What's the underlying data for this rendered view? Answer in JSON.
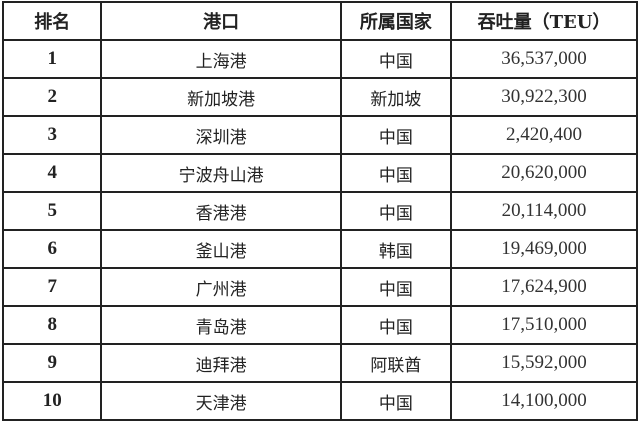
{
  "table": {
    "headers": [
      "排名",
      "港口",
      "所属国家",
      "吞吐量（TEU）"
    ],
    "rows": [
      [
        "1",
        "上海港",
        "中国",
        "36,537,000"
      ],
      [
        "2",
        "新加坡港",
        "新加坡",
        "30,922,300"
      ],
      [
        "3",
        "深圳港",
        "中国",
        "2,420,400"
      ],
      [
        "4",
        "宁波舟山港",
        "中国",
        "20,620,000"
      ],
      [
        "5",
        "香港港",
        "中国",
        "20,114,000"
      ],
      [
        "6",
        "釜山港",
        "韩国",
        "19,469,000"
      ],
      [
        "7",
        "广州港",
        "中国",
        "17,624,900"
      ],
      [
        "8",
        "青岛港",
        "中国",
        "17,510,000"
      ],
      [
        "9",
        "迪拜港",
        "阿联酋",
        "15,592,000"
      ],
      [
        "10",
        "天津港",
        "中国",
        "14,100,000"
      ]
    ]
  }
}
